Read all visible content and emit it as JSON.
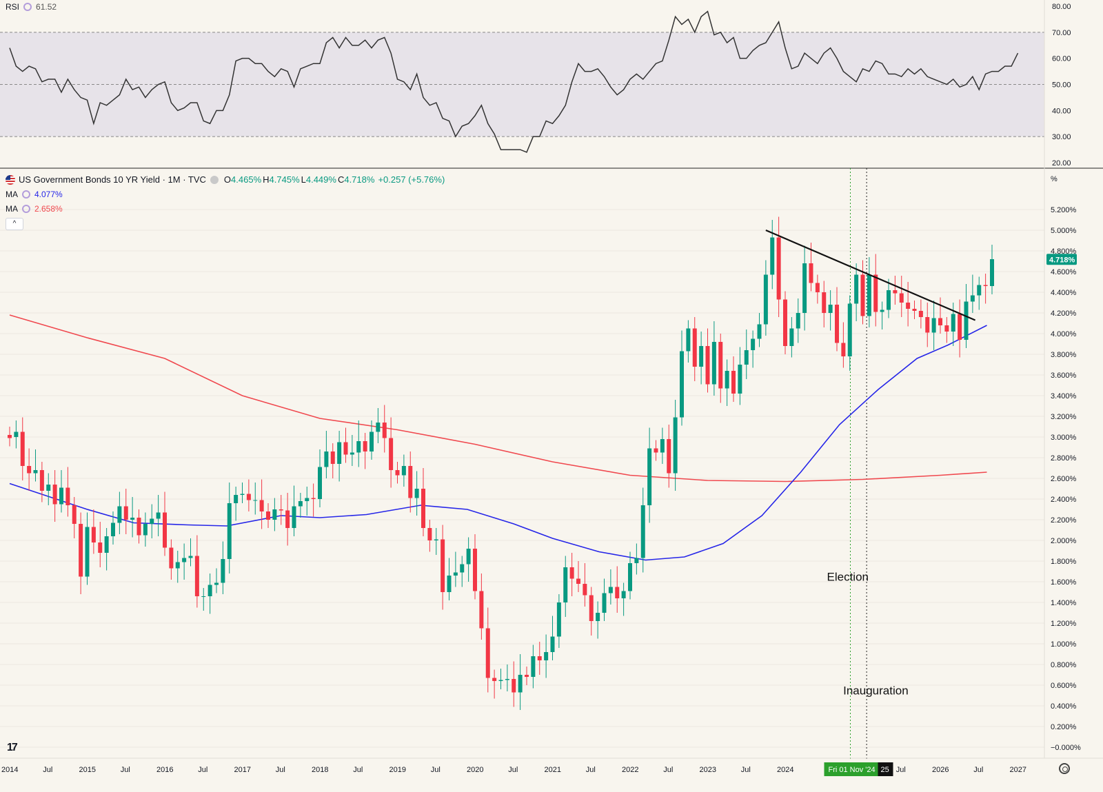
{
  "rsi_header": {
    "label": "RSI",
    "value": "61.52"
  },
  "main_header": {
    "title": "US Government Bonds 10 YR Yield · 1M · TVC",
    "open_key": "O",
    "open": "4.465%",
    "high_key": "H",
    "high": "4.745%",
    "low_key": "L",
    "low": "4.449%",
    "close_key": "C",
    "close": "4.718%",
    "change": "+0.257 (+5.76%)"
  },
  "ma_lines": [
    {
      "label": "MA",
      "value": "4.077%",
      "color": "#2525e8"
    },
    {
      "label": "MA",
      "value": "2.658%",
      "color": "#f0484e"
    }
  ],
  "collapse_label": "^",
  "logo_text": "17",
  "colors": {
    "up": "#089981",
    "down": "#f23645",
    "background": "#f8f5ee",
    "rsi_band": "#e7e3e9"
  },
  "chart_data": [
    {
      "type": "line",
      "title": "RSI",
      "ylim": [
        20,
        80
      ],
      "y_ticks": [
        "80.00",
        "70.00",
        "60.00",
        "50.00",
        "40.00",
        "30.00",
        "20.00"
      ],
      "band": [
        30,
        70
      ],
      "midline": 50,
      "x_start": 2014.0,
      "x_step_months": 1,
      "values": [
        64,
        57,
        55,
        57,
        56,
        51,
        52,
        52,
        47,
        52,
        48,
        45,
        44,
        35,
        43,
        42,
        44,
        46,
        52,
        48,
        49,
        45,
        48,
        50,
        51,
        43,
        40,
        41,
        43,
        43,
        36,
        35,
        40,
        40,
        46,
        59,
        60,
        60,
        58,
        58,
        55,
        53,
        56,
        55,
        49,
        56,
        57,
        58,
        58,
        66,
        68,
        64,
        68,
        65,
        65,
        67,
        64,
        67,
        68,
        62,
        52,
        51,
        48,
        54,
        45,
        42,
        43,
        37,
        36,
        30,
        34,
        35,
        38,
        42,
        35,
        31,
        25,
        25,
        25,
        25,
        24,
        30,
        30,
        36,
        35,
        38,
        42,
        51,
        58,
        55,
        55,
        56,
        53,
        49,
        46,
        48,
        52,
        54,
        52,
        55,
        58,
        59,
        67,
        76,
        73,
        75,
        70,
        76,
        78,
        69,
        70,
        66,
        68,
        60,
        60,
        63,
        65,
        66,
        70,
        74,
        64,
        56,
        57,
        62,
        60,
        58,
        62,
        64,
        60,
        55,
        53,
        51,
        56,
        55,
        59,
        58,
        54,
        54,
        53,
        56,
        54,
        56,
        53,
        52,
        51,
        50,
        52,
        49,
        50,
        53,
        48,
        54,
        55,
        55,
        57,
        57,
        62
      ],
      "last_value": 61.52
    },
    {
      "type": "candlestick",
      "title": "US Government Bonds 10 YR Yield · 1M · TVC",
      "ylabel": "%",
      "ylim": [
        -0.0,
        5.4
      ],
      "y_ticks": [
        "5.200%",
        "5.000%",
        "4.800%",
        "4.600%",
        "4.400%",
        "4.200%",
        "4.000%",
        "3.800%",
        "3.600%",
        "3.400%",
        "3.200%",
        "3.000%",
        "2.800%",
        "2.600%",
        "2.400%",
        "2.200%",
        "2.000%",
        "1.800%",
        "1.600%",
        "1.400%",
        "1.200%",
        "1.000%",
        "0.800%",
        "0.600%",
        "0.400%",
        "0.200%",
        "−0.000%"
      ],
      "x_ticks": [
        {
          "label": "2014",
          "x": 2014.0
        },
        {
          "label": "Jul",
          "x": 2014.5
        },
        {
          "label": "2015",
          "x": 2015.0
        },
        {
          "label": "Jul",
          "x": 2015.5
        },
        {
          "label": "2016",
          "x": 2016.0
        },
        {
          "label": "Jul",
          "x": 2016.5
        },
        {
          "label": "2017",
          "x": 2017.0
        },
        {
          "label": "Jul",
          "x": 2017.5
        },
        {
          "label": "2018",
          "x": 2018.0
        },
        {
          "label": "Jul",
          "x": 2018.5
        },
        {
          "label": "2019",
          "x": 2019.0
        },
        {
          "label": "Jul",
          "x": 2019.5
        },
        {
          "label": "2020",
          "x": 2020.0
        },
        {
          "label": "Jul",
          "x": 2020.5
        },
        {
          "label": "2021",
          "x": 2021.0
        },
        {
          "label": "Jul",
          "x": 2021.5
        },
        {
          "label": "2022",
          "x": 2022.0
        },
        {
          "label": "Jul",
          "x": 2022.5
        },
        {
          "label": "2023",
          "x": 2023.0
        },
        {
          "label": "Jul",
          "x": 2023.5
        },
        {
          "label": "2024",
          "x": 2024.0
        },
        {
          "label": "Jul",
          "x": 2025.5
        },
        {
          "label": "2026",
          "x": 2026.0
        },
        {
          "label": "Jul",
          "x": 2026.5
        },
        {
          "label": "2027",
          "x": 2027.0
        }
      ],
      "x_start": 2014.0,
      "x_step_months": 1,
      "closes": [
        2.99,
        3.05,
        2.72,
        2.65,
        2.68,
        2.48,
        2.54,
        2.35,
        2.51,
        2.34,
        2.16,
        1.65,
        2.13,
        1.98,
        1.88,
        2.04,
        2.17,
        2.33,
        2.2,
        2.22,
        2.05,
        2.16,
        2.21,
        2.27,
        1.93,
        1.73,
        1.79,
        1.83,
        1.85,
        1.46,
        1.46,
        1.57,
        1.59,
        1.82,
        2.36,
        2.44,
        2.45,
        2.39,
        2.39,
        2.28,
        2.2,
        2.3,
        2.29,
        2.12,
        2.33,
        2.38,
        2.41,
        2.4,
        2.71,
        2.86,
        2.74,
        2.95,
        2.83,
        2.85,
        2.96,
        2.86,
        3.05,
        3.14,
        2.99,
        2.68,
        2.63,
        2.72,
        2.41,
        2.5,
        2.12,
        2.0,
        2.01,
        1.5,
        1.66,
        1.69,
        1.77,
        1.92,
        1.51,
        1.15,
        0.67,
        0.64,
        0.65,
        0.66,
        0.53,
        0.7,
        0.68,
        0.88,
        0.84,
        0.92,
        1.07,
        1.4,
        1.74,
        1.63,
        1.58,
        1.47,
        1.22,
        1.3,
        1.49,
        1.55,
        1.44,
        1.51,
        1.78,
        1.83,
        2.34,
        2.89,
        2.85,
        2.98,
        2.65,
        3.19,
        3.83,
        4.05,
        3.68,
        3.88,
        3.51,
        3.92,
        3.47,
        3.64,
        3.42,
        3.7,
        3.84,
        3.95,
        4.09,
        4.57,
        4.93,
        4.33,
        3.88,
        4.05,
        4.2,
        4.68,
        4.49,
        4.4,
        4.2,
        4.28,
        3.91,
        3.78,
        4.29,
        4.57,
        4.17,
        4.57,
        4.21,
        4.23,
        4.42,
        4.39,
        4.3,
        4.24,
        4.22,
        4.16,
        4.01,
        4.15,
        4.08,
        4.02,
        4.19,
        3.94,
        4.31,
        4.37,
        4.47,
        4.46,
        4.72
      ],
      "opens": [
        3.02,
        3.0,
        3.05,
        2.72,
        2.65,
        2.68,
        2.48,
        2.54,
        2.35,
        2.51,
        2.34,
        2.16,
        1.65,
        2.13,
        1.98,
        1.88,
        2.04,
        2.17,
        2.33,
        2.2,
        2.22,
        2.05,
        2.16,
        2.21,
        2.27,
        1.93,
        1.73,
        1.79,
        1.83,
        1.85,
        1.46,
        1.46,
        1.57,
        1.59,
        1.82,
        2.36,
        2.44,
        2.45,
        2.39,
        2.39,
        2.28,
        2.2,
        2.3,
        2.29,
        2.12,
        2.33,
        2.38,
        2.41,
        2.4,
        2.71,
        2.86,
        2.74,
        2.95,
        2.83,
        2.85,
        2.96,
        2.86,
        3.05,
        3.14,
        2.99,
        2.68,
        2.63,
        2.72,
        2.41,
        2.5,
        2.12,
        2.0,
        2.01,
        1.5,
        1.66,
        1.69,
        1.77,
        1.92,
        1.51,
        1.15,
        0.67,
        0.64,
        0.65,
        0.66,
        0.53,
        0.7,
        0.68,
        0.88,
        0.84,
        0.92,
        1.07,
        1.4,
        1.74,
        1.63,
        1.58,
        1.47,
        1.22,
        1.3,
        1.49,
        1.55,
        1.44,
        1.51,
        1.78,
        1.83,
        2.34,
        2.89,
        2.85,
        2.98,
        2.65,
        3.19,
        3.83,
        4.05,
        3.68,
        3.88,
        3.51,
        3.92,
        3.47,
        3.64,
        3.42,
        3.7,
        3.84,
        3.95,
        4.09,
        4.57,
        4.93,
        4.33,
        3.88,
        4.05,
        4.2,
        4.68,
        4.49,
        4.4,
        4.2,
        4.28,
        3.91,
        3.78,
        4.29,
        4.57,
        4.17,
        4.57,
        4.21,
        4.23,
        4.42,
        4.39,
        4.3,
        4.24,
        4.22,
        4.16,
        4.01,
        4.15,
        4.08,
        4.02,
        4.19,
        3.94,
        4.31,
        4.37,
        4.47,
        4.46
      ],
      "ma_slow_points": [
        [
          2014.0,
          4.18
        ],
        [
          2015.0,
          3.96
        ],
        [
          2016.0,
          3.76
        ],
        [
          2017.0,
          3.4
        ],
        [
          2018.0,
          3.18
        ],
        [
          2019.0,
          3.07
        ],
        [
          2020.0,
          2.93
        ],
        [
          2021.0,
          2.76
        ],
        [
          2022.0,
          2.63
        ],
        [
          2023.0,
          2.58
        ],
        [
          2024.0,
          2.57
        ],
        [
          2025.0,
          2.59
        ],
        [
          2026.0,
          2.63
        ],
        [
          2026.6,
          2.66
        ]
      ],
      "ma_fast_points": [
        [
          2014.0,
          2.55
        ],
        [
          2015.0,
          2.3
        ],
        [
          2015.6,
          2.17
        ],
        [
          2016.3,
          2.15
        ],
        [
          2016.8,
          2.14
        ],
        [
          2017.5,
          2.24
        ],
        [
          2018.0,
          2.22
        ],
        [
          2018.6,
          2.25
        ],
        [
          2019.3,
          2.34
        ],
        [
          2019.9,
          2.3
        ],
        [
          2020.5,
          2.16
        ],
        [
          2021.0,
          2.02
        ],
        [
          2021.6,
          1.89
        ],
        [
          2022.2,
          1.81
        ],
        [
          2022.7,
          1.84
        ],
        [
          2023.2,
          1.97
        ],
        [
          2023.7,
          2.24
        ],
        [
          2024.2,
          2.66
        ],
        [
          2024.7,
          3.12
        ],
        [
          2025.2,
          3.46
        ],
        [
          2025.7,
          3.76
        ],
        [
          2026.1,
          3.89
        ],
        [
          2026.6,
          4.08
        ]
      ],
      "trendline": [
        [
          2023.75,
          5.0
        ],
        [
          2026.45,
          4.13
        ]
      ],
      "last_price": "4.718%",
      "annotations": [
        {
          "text": "Election",
          "x": 2024.84,
          "y": 1.65
        },
        {
          "text": "Inauguration",
          "x": 2025.05,
          "y": 0.55
        }
      ],
      "vlines": [
        2024.84,
        2025.05
      ],
      "x_crosshair_label": "Fri 01 Nov '24",
      "x_crosshair_suffix": "25"
    }
  ]
}
